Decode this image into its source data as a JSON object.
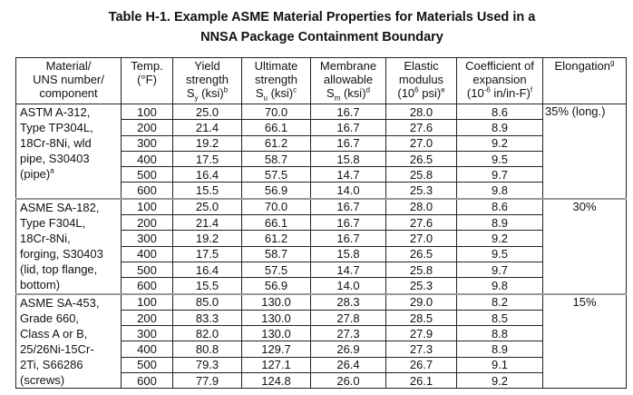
{
  "title": {
    "line1": "Table H-1.  Example ASME Material Properties for Materials Used in a",
    "line2": "NNSA Package Containment Boundary"
  },
  "headers": {
    "material": [
      "Material/",
      "UNS number/",
      "component"
    ],
    "temp": [
      "Temp.",
      "(°F)"
    ],
    "yield": {
      "l1": "Yield",
      "l2": "strength",
      "sym": "S",
      "sub": "y",
      "unit": " (ksi)",
      "note": "b"
    },
    "ultimate": {
      "l1": "Ultimate",
      "l2": "strength",
      "sym": "S",
      "sub": "u",
      "unit": " (ksi)",
      "note": "c"
    },
    "membrane": {
      "l1": "Membrane",
      "l2": "allowable",
      "sym": "S",
      "sub": "m",
      "unit": " (ksi)",
      "note": "d"
    },
    "elastic": {
      "l1": "Elastic",
      "l2": "modulus",
      "pre": "(10",
      "exp": "6",
      "post": " psi)",
      "note": "e"
    },
    "expansion": {
      "l1": "Coefficient of",
      "l2": "expansion",
      "pre": "(10",
      "exp": "-6",
      "post": " in/in-F)",
      "note": "f"
    },
    "elongation": {
      "label": "Elongation",
      "note": "g"
    }
  },
  "groups": [
    {
      "material": [
        "ASTM A-312,",
        "Type TP304L,",
        "18Cr-8Ni, wld",
        "pipe, S30403",
        "(pipe)"
      ],
      "material_note": "a",
      "elongation": "35% (long.)",
      "rows": [
        [
          "100",
          "25.0",
          "70.0",
          "16.7",
          "28.0",
          "8.6"
        ],
        [
          "200",
          "21.4",
          "66.1",
          "16.7",
          "27.6",
          "8.9"
        ],
        [
          "300",
          "19.2",
          "61.2",
          "16.7",
          "27.0",
          "9.2"
        ],
        [
          "400",
          "17.5",
          "58.7",
          "15.8",
          "26.5",
          "9.5"
        ],
        [
          "500",
          "16.4",
          "57.5",
          "14.7",
          "25.8",
          "9.7"
        ],
        [
          "600",
          "15.5",
          "56.9",
          "14.0",
          "25.3",
          "9.8"
        ]
      ]
    },
    {
      "material": [
        "ASME SA-182,",
        "Type F304L,",
        "18Cr-8Ni,",
        "forging, S30403",
        "(lid, top flange,",
        "bottom)"
      ],
      "material_note": "",
      "elongation": "30%",
      "rows": [
        [
          "100",
          "25.0",
          "70.0",
          "16.7",
          "28.0",
          "8.6"
        ],
        [
          "200",
          "21.4",
          "66.1",
          "16.7",
          "27.6",
          "8.9"
        ],
        [
          "300",
          "19.2",
          "61.2",
          "16.7",
          "27.0",
          "9.2"
        ],
        [
          "400",
          "17.5",
          "58.7",
          "15.8",
          "26.5",
          "9.5"
        ],
        [
          "500",
          "16.4",
          "57.5",
          "14.7",
          "25.8",
          "9.7"
        ],
        [
          "600",
          "15.5",
          "56.9",
          "14.0",
          "25.3",
          "9.8"
        ]
      ]
    },
    {
      "material": [
        "ASME SA-453,",
        "Grade 660,",
        "Class A or B,",
        "25/26Ni-15Cr-",
        "2Ti, S66286",
        "(screws)"
      ],
      "material_note": "",
      "elongation": "15%",
      "rows": [
        [
          "100",
          "85.0",
          "130.0",
          "28.3",
          "29.0",
          "8.2"
        ],
        [
          "200",
          "83.3",
          "130.0",
          "27.8",
          "28.5",
          "8.5"
        ],
        [
          "300",
          "82.0",
          "130.0",
          "27.3",
          "27.9",
          "8.8"
        ],
        [
          "400",
          "80.8",
          "129.7",
          "26.9",
          "27.3",
          "8.9"
        ],
        [
          "500",
          "79.3",
          "127.1",
          "26.4",
          "26.7",
          "9.1"
        ],
        [
          "600",
          "77.9",
          "124.8",
          "26.0",
          "26.1",
          "9.2"
        ]
      ]
    }
  ]
}
